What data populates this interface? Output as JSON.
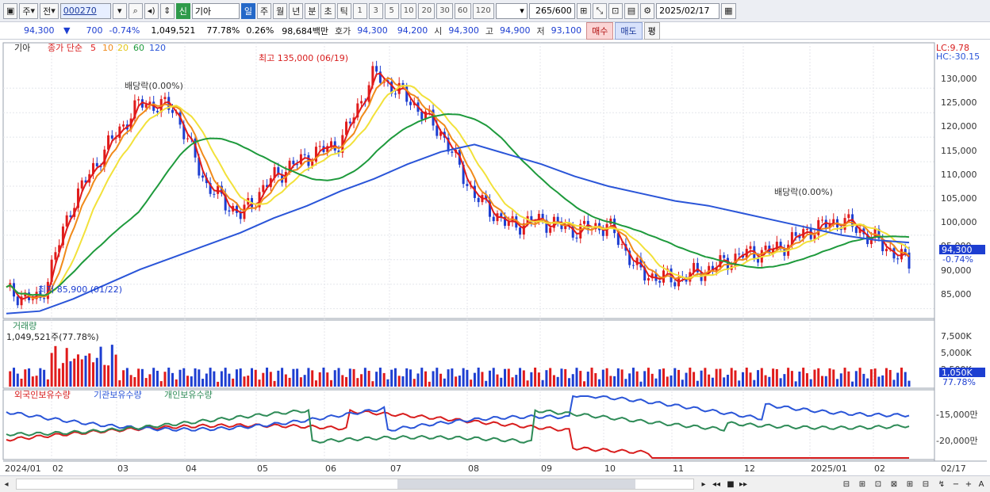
{
  "toolbar": {
    "stock_code": "000270",
    "stock_name": "기아",
    "market_badge": "신",
    "type_label": "주",
    "prev_label": "전",
    "periods": [
      "일",
      "주",
      "월",
      "년",
      "분",
      "초",
      "틱"
    ],
    "active_period": "일",
    "intervals": [
      "1",
      "3",
      "5",
      "10",
      "20",
      "30",
      "60",
      "120"
    ],
    "count_value": "265",
    "count_total": "/600",
    "date_value": "2025/02/17"
  },
  "info_bar": {
    "price": "94,300",
    "change_arrow": "▼",
    "change": "700",
    "change_pct": "-0.74%",
    "volume": "1,049,521",
    "volume_ratio": "77.78%",
    "turnover": "0.26%",
    "trade_value": "98,684백만",
    "bid_label": "호가",
    "ask_price": "94,300",
    "bid_price": "94,200",
    "open_label": "시",
    "open": "94,300",
    "high_label": "고",
    "high": "94,900",
    "low_label": "저",
    "low": "93,100",
    "buy_label": "매수",
    "sell_label": "매도",
    "avg_label": "평"
  },
  "price_panel": {
    "stock_name": "기아",
    "ma_title": "종가 단순",
    "ma_periods": [
      "5",
      "10",
      "20",
      "60",
      "120"
    ],
    "ma_colors": [
      "#e01b1b",
      "#f08a1a",
      "#f2e13a",
      "#1e9a3c",
      "#2a55d8"
    ],
    "lc_label": "LC:9.78",
    "hc_label": "HC:-30.15",
    "high_annot": "최고 135,000 (06/19)",
    "low_annot": "최저 85,900 (01/22)",
    "dividend_annots": [
      "배당락(0.00%)",
      "배당락(0.00%)"
    ],
    "y_ticks": [
      "130,000",
      "125,000",
      "120,000",
      "115,000",
      "110,000",
      "105,000",
      "100,000",
      "95,000",
      "90,000",
      "85,000"
    ],
    "current_price": "94,300",
    "current_pct": "-0.74%"
  },
  "volume_panel": {
    "title": "거래량",
    "current": "1,049,521주(77.78%)",
    "y_ticks": [
      "7,500K",
      "5,000K",
      "2,500K"
    ],
    "current_tag": "1,050K",
    "current_pct": "77.78%"
  },
  "holdings_panel": {
    "legend": [
      "외국인보유수량",
      "기관보유수량",
      "개인보유수량"
    ],
    "colors": [
      "#d81d1d",
      "#2a55d8",
      "#2e8b57"
    ],
    "y_ticks": [
      "-15,000만",
      "-20,000만"
    ]
  },
  "x_axis": {
    "labels": [
      "2024/01",
      "02",
      "03",
      "04",
      "05",
      "06",
      "07",
      "08",
      "09",
      "10",
      "11",
      "12",
      "2025/01",
      "02"
    ],
    "right_date": "02/17"
  },
  "chart_data": {
    "type": "line",
    "title": "기아",
    "x": [
      "2024/01/02",
      "2024/01/22",
      "2024/02/02",
      "2024/02/20",
      "2024/03/06",
      "2024/03/20",
      "2024/04/05",
      "2024/04/16",
      "2024/05/02",
      "2024/05/20",
      "2024/06/03",
      "2024/06/19",
      "2024/07/03",
      "2024/07/19",
      "2024/08/05",
      "2024/08/20",
      "2024/09/03",
      "2024/09/20",
      "2024/10/07",
      "2024/10/22",
      "2024/11/05",
      "2024/11/20",
      "2024/12/05",
      "2024/12/20",
      "2025/01/06",
      "2025/01/20",
      "2025/02/03",
      "2025/02/17"
    ],
    "series": [
      {
        "name": "종가",
        "values": [
          88500,
          86500,
          107000,
          118000,
          127000,
          126000,
          110000,
          104000,
          112000,
          116000,
          119000,
          133000,
          128000,
          121000,
          108000,
          102000,
          103000,
          101000,
          102000,
          92000,
          91000,
          93000,
          96000,
          97000,
          101000,
          103000,
          99000,
          94300
        ]
      },
      {
        "name": "120",
        "values": [
          84000,
          84500,
          87000,
          90000,
          93000,
          95500,
          98000,
          100500,
          103500,
          106000,
          109000,
          111500,
          114500,
          117000,
          118500,
          116500,
          114500,
          112000,
          110000,
          108500,
          107000,
          106000,
          104500,
          103000,
          101500,
          100000,
          99000,
          98500
        ]
      }
    ],
    "ylim": [
      83000,
      137000
    ]
  }
}
